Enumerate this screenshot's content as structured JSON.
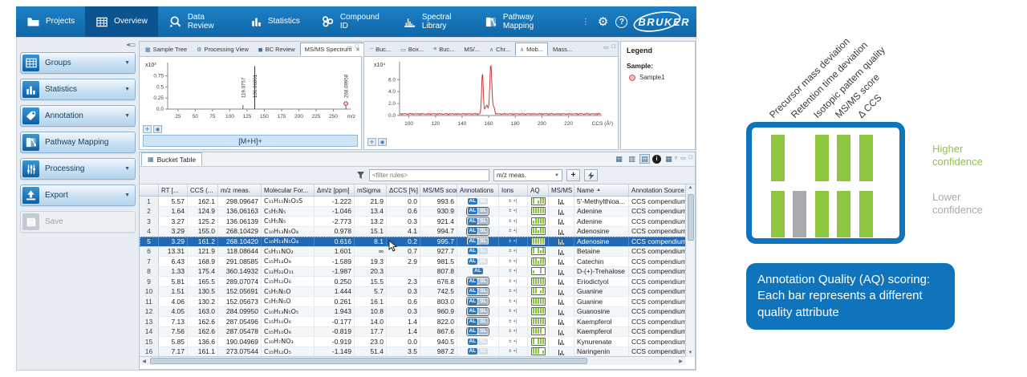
{
  "colors": {
    "toolbar_blue": "#1074bc",
    "toolbar_active": "#0b5490",
    "selected_row": "#2268b2",
    "bar_green": "#8dc63f",
    "bar_gray": "#a7a9ac",
    "trace_red": "#c63939",
    "sample_dot": "#f5b9bd"
  },
  "toolbar": {
    "items": [
      {
        "label": "Projects",
        "icon": "folder-icon",
        "active": false
      },
      {
        "label": "Overview",
        "icon": "grid-icon",
        "active": true
      },
      {
        "label": "Data Review",
        "icon": "review-icon",
        "active": false
      },
      {
        "label": "Statistics",
        "icon": "bar-chart-icon",
        "active": false
      },
      {
        "label": "Compound ID",
        "icon": "compound-icon",
        "active": false
      },
      {
        "label": "Spectral Library",
        "icon": "spectrum-icon",
        "active": false
      },
      {
        "label": "Pathway Mapping",
        "icon": "pathway-icon",
        "active": false
      }
    ],
    "logo": "BRUKER"
  },
  "sidebar": {
    "items": [
      {
        "label": "Groups",
        "icon": "grid-icon",
        "dropdown": true,
        "disabled": false
      },
      {
        "label": "Statistics",
        "icon": "bar-chart-icon",
        "dropdown": true,
        "disabled": false
      },
      {
        "label": "Annotation",
        "icon": "tag-icon",
        "dropdown": true,
        "disabled": false
      },
      {
        "label": "Pathway Mapping",
        "icon": "pathway-icon",
        "dropdown": false,
        "disabled": false
      },
      {
        "label": "Processing",
        "icon": "sliders-icon",
        "dropdown": true,
        "disabled": false
      },
      {
        "label": "Export",
        "icon": "export-icon",
        "dropdown": true,
        "disabled": false
      },
      {
        "label": "Save",
        "icon": "save-icon",
        "dropdown": false,
        "disabled": true
      }
    ]
  },
  "spectrum_panel": {
    "tabs": [
      {
        "label": "Sample Tree",
        "icon": "grid-sm",
        "active": false,
        "closable": false
      },
      {
        "label": "Processing View",
        "icon": "gears",
        "active": false,
        "closable": false
      },
      {
        "label": "BC Review",
        "icon": "bc",
        "active": false,
        "closable": false
      },
      {
        "label": "MS/MS Spectrum",
        "icon": "",
        "active": true,
        "closable": true
      }
    ],
    "adduct_label": "[M+H]+"
  },
  "mobilogram_panel": {
    "tabs": [
      {
        "label": "Buc...",
        "icon": "wave",
        "active": false
      },
      {
        "label": "Box...",
        "icon": "box",
        "active": false
      },
      {
        "label": "Buc...",
        "icon": "dist",
        "active": false
      },
      {
        "label": "MS/...",
        "icon": "",
        "active": false
      },
      {
        "label": "Chr...",
        "icon": "peak",
        "active": false
      },
      {
        "label": "Mob...",
        "icon": "peak",
        "active": true
      },
      {
        "label": "Mass...",
        "icon": "",
        "active": false
      }
    ]
  },
  "legend": {
    "title": "Legend",
    "sample_label": "Sample:",
    "sample_name": "Sample1"
  },
  "bucket_table": {
    "tab": "Bucket Table",
    "filter_placeholder": "<filter rules>",
    "filter_dropdown": "m/z meas.",
    "columns": [
      {
        "key": "n",
        "label": ""
      },
      {
        "key": "rt",
        "label": "RT [..."
      },
      {
        "key": "ccs",
        "label": "CCS (..."
      },
      {
        "key": "mz",
        "label": "m/z meas."
      },
      {
        "key": "formula",
        "label": "Molecular For..."
      },
      {
        "key": "dmz",
        "label": "Δm/z [ppm]"
      },
      {
        "key": "msigma",
        "label": "mSigma"
      },
      {
        "key": "dccs",
        "label": "ΔCCS [%]"
      },
      {
        "key": "score",
        "label": "MS/MS score"
      },
      {
        "key": "badges",
        "label": "Annotations"
      },
      {
        "key": "ions",
        "label": "Ions"
      },
      {
        "key": "aq",
        "label": "AQ"
      },
      {
        "key": "msms",
        "label": "MS/MS"
      },
      {
        "key": "name",
        "label": "Name",
        "sort": "asc"
      },
      {
        "key": "source",
        "label": "Annotation Source"
      }
    ],
    "selected_row": 5,
    "rows": [
      {
        "n": 1,
        "rt": "5.57",
        "ccs": "162.1",
        "mz": "298.09647",
        "formula": "C₁₁H₁₅N₅O₃S",
        "dmz": "-1.222",
        "msigma": "21.9",
        "dccs": "0.0",
        "score": "993.6",
        "badges": "dim",
        "aq": "g-sgg",
        "name": "5'-Methylthioa...",
        "source": "CCS compendium2"
      },
      {
        "n": 2,
        "rt": "1.64",
        "ccs": "124.9",
        "mz": "136.06163",
        "formula": "C₅H₅N₅",
        "dmz": "-1.046",
        "msigma": "13.4",
        "dccs": "0.6",
        "score": "930.9",
        "badges": "box",
        "aq": "ggggg",
        "name": "Adenine",
        "source": "CCS compendium2"
      },
      {
        "n": 3,
        "rt": "3.27",
        "ccs": "125.2",
        "mz": "136.06139",
        "formula": "C₅H₅N₅",
        "dmz": "-2.773",
        "msigma": "13.2",
        "dccs": "0.3",
        "score": "921.4",
        "badges": "box",
        "aq": "sgggg",
        "name": "Adenine",
        "source": "CCS compendium2"
      },
      {
        "n": 4,
        "rt": "3.29",
        "ccs": "155.0",
        "mz": "268.10429",
        "formula": "C₁₀H₁₃N₅O₄",
        "dmz": "0.978",
        "msigma": "15.1",
        "dccs": "4.1",
        "score": "994.7",
        "badges": "box",
        "aq": "ggsgg",
        "name": "Adenosine",
        "source": "CCS compendium2"
      },
      {
        "n": 5,
        "rt": "3.29",
        "ccs": "161.2",
        "mz": "268.10420",
        "formula": "C₁₀H₁₃N₅O₄",
        "dmz": "0.616",
        "msigma": "8.1",
        "dccs": "0.2",
        "score": "995.7",
        "badges": "box",
        "aq": "ggggg",
        "name": "Adenosine",
        "source": "CCS compendium2"
      },
      {
        "n": 6,
        "rt": "13.31",
        "ccs": "121.9",
        "mz": "118.08644",
        "formula": "C₅H₁₁NO₂",
        "dmz": "1.601",
        "msigma": "∞",
        "dccs": "0.7",
        "score": "927.7",
        "badges": "dim",
        "aq": "g-gsg",
        "name": "Betaine",
        "source": "CCS compendium2"
      },
      {
        "n": 7,
        "rt": "6.43",
        "ccs": "168.9",
        "mz": "291.08585",
        "formula": "C₁₅H₁₄O₆",
        "dmz": "-1.589",
        "msigma": "19.3",
        "dccs": "2.9",
        "score": "981.5",
        "badges": "dim",
        "aq": "ggsgg",
        "name": "Catechin",
        "source": "CCS compendium2"
      },
      {
        "n": 8,
        "rt": "1.33",
        "ccs": "175.4",
        "mz": "360.14932",
        "formula": "C₁₂H₂₂O₁₁",
        "dmz": "-1.987",
        "msigma": "20.3",
        "dccs": "",
        "score": "807.8",
        "badges": "al",
        "aq": "s--x-",
        "name": "D-(+)-Trehalose",
        "source": "CCS compendium2"
      },
      {
        "n": 9,
        "rt": "5.81",
        "ccs": "165.5",
        "mz": "289.07074",
        "formula": "C₁₅H₁₂O₆",
        "dmz": "0.250",
        "msigma": "15.5",
        "dccs": "2.3",
        "score": "676.8",
        "badges": "box",
        "aq": "ggxgg",
        "name": "Eriodictyol",
        "source": "CCS compendium2"
      },
      {
        "n": 10,
        "rt": "1.51",
        "ccs": "130.5",
        "mz": "152.05691",
        "formula": "C₅H₅N₅O",
        "dmz": "1.444",
        "msigma": "5.7",
        "dccs": "0.3",
        "score": "742.5",
        "badges": "box",
        "aq": "gg-sg",
        "name": "Guanine",
        "source": "CCS compendium2"
      },
      {
        "n": 11,
        "rt": "4.06",
        "ccs": "130.2",
        "mz": "152.05673",
        "formula": "C₅H₅N₅O",
        "dmz": "0.261",
        "msigma": "16.1",
        "dccs": "0.6",
        "score": "803.0",
        "badges": "box",
        "aq": "gggxg",
        "name": "Guanine",
        "source": "CCS compendium2"
      },
      {
        "n": 12,
        "rt": "4.05",
        "ccs": "163.0",
        "mz": "284.09950",
        "formula": "C₁₀H₁₃N₅O₅",
        "dmz": "1.943",
        "msigma": "10.8",
        "dccs": "0.3",
        "score": "960.9",
        "badges": "box",
        "aq": "ggggg",
        "name": "Guanosine",
        "source": "CCS compendium2"
      },
      {
        "n": 13,
        "rt": "7.13",
        "ccs": "162.6",
        "mz": "287.05496",
        "formula": "C₁₅H₁₀O₆",
        "dmz": "-0.177",
        "msigma": "14.0",
        "dccs": "1.4",
        "score": "822.0",
        "badges": "box",
        "aq": "ggxgg",
        "name": "Kaempferol",
        "source": "CCS compendium2"
      },
      {
        "n": 14,
        "rt": "7.56",
        "ccs": "162.6",
        "mz": "287.05478",
        "formula": "C₁₅H₁₀O₆",
        "dmz": "-0.819",
        "msigma": "17.7",
        "dccs": "1.4",
        "score": "867.6",
        "badges": "box",
        "aq": "gggg-",
        "name": "Kaempferol",
        "source": "CCS compendium2"
      },
      {
        "n": 15,
        "rt": "5.85",
        "ccs": "136.6",
        "mz": "190.04969",
        "formula": "C₁₀H₇NO₃",
        "dmz": "-0.919",
        "msigma": "23.0",
        "dccs": "0.0",
        "score": "940.5",
        "badges": "dim",
        "aq": "g-ggg",
        "name": "Kynurenate",
        "source": "CCS compendium2"
      },
      {
        "n": 16,
        "rt": "7.17",
        "ccs": "161.1",
        "mz": "273.07544",
        "formula": "C₁₅H₁₂O₅",
        "dmz": "-1.149",
        "msigma": "51.4",
        "dccs": "3.5",
        "score": "987.2",
        "badges": "dim",
        "aq": "ggg-s",
        "name": "Naringenin",
        "source": "CCS compendium2"
      }
    ]
  },
  "chart_data": [
    {
      "type": "bar",
      "title": "MS/MS Spectrum",
      "scale_label": "x10³",
      "xlabel": "m/z",
      "ylabel": "",
      "xlim": [
        10,
        275
      ],
      "ylim": [
        0,
        1.05
      ],
      "xticks": [
        25,
        50,
        75,
        100,
        125,
        150,
        175,
        200,
        225,
        250
      ],
      "yticks": [
        0.0,
        0.25,
        0.5,
        0.75
      ],
      "peaks": [
        {
          "mz": 119.0757,
          "intensity": 0.09,
          "label": "119.0757",
          "precursor_marker": false
        },
        {
          "mz": 136.06861,
          "intensity": 0.97,
          "label": "136.06861",
          "precursor_marker": false
        },
        {
          "mz": 268.09958,
          "intensity": 0.07,
          "label": "268.09958",
          "precursor_marker": true
        }
      ]
    },
    {
      "type": "line",
      "title": "Mobilogram",
      "scale_label": "x10⁴",
      "xlabel": "CCS (Å²)",
      "ylabel": "",
      "series": [
        {
          "name": "Sample1",
          "color": "#c63939"
        }
      ],
      "xlim": [
        93,
        245
      ],
      "ylim": [
        0,
        9
      ],
      "xticks": [
        100,
        120,
        140,
        160,
        180,
        200,
        220
      ],
      "yticks": [
        0.0,
        2.0,
        4.0,
        6.0
      ],
      "peaks": [
        {
          "x": 155.3,
          "y": 6.9,
          "width": 0.85
        },
        {
          "x": 161.6,
          "y": 8.35,
          "width": 1.05
        },
        {
          "x": 158.4,
          "y": 1.4,
          "width": 1.6
        },
        {
          "x": 163.8,
          "y": 1.2,
          "width": 0.9
        }
      ],
      "baseline_noise": 0.25
    }
  ],
  "diagram": {
    "labels": [
      "Precursor mass deviation",
      "Retention time deviation",
      "Isotopic pattern quality",
      "MS/MS score",
      "Δ CCS"
    ],
    "top_bars": [
      "green",
      null,
      "green",
      "green",
      "green"
    ],
    "bottom_bars": [
      "green",
      "gray",
      "green",
      "green",
      "green"
    ],
    "higher_label": "Higher confidence",
    "lower_label": "Lower confidence",
    "caption": "Annotation Quality (AQ) scoring: Each bar represents a different quality attribute"
  }
}
